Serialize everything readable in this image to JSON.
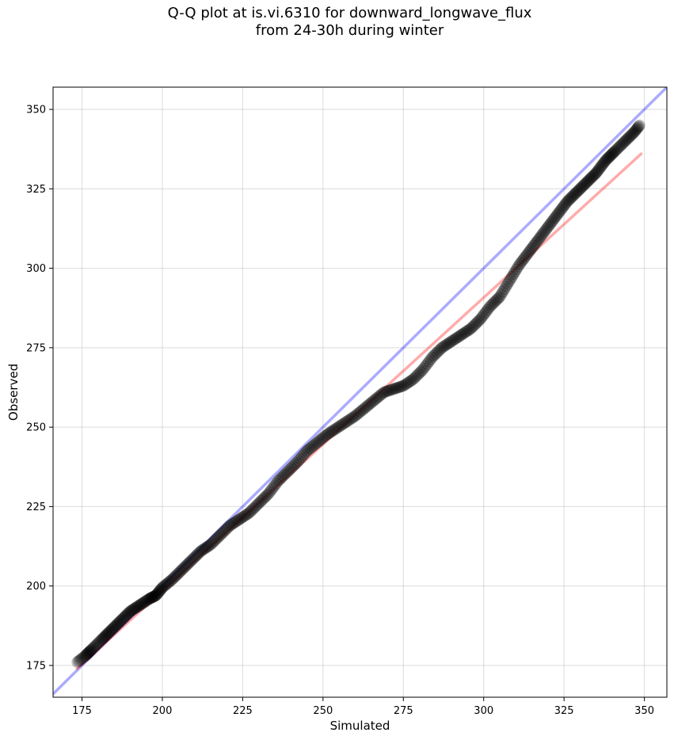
{
  "chart_data": {
    "type": "scatter",
    "title": "Q-Q plot at is.vi.6310 for downward_longwave_flux",
    "subtitle": "from 24-30h during winter",
    "xlabel": "Simulated",
    "ylabel": "Observed",
    "xlim": [
      166,
      357
    ],
    "ylim": [
      165,
      357
    ],
    "xticks": [
      175,
      200,
      225,
      250,
      275,
      300,
      325,
      350
    ],
    "yticks": [
      175,
      200,
      225,
      250,
      275,
      300,
      325,
      350
    ],
    "grid": true,
    "quantile_curve": {
      "x": [
        173.5,
        176,
        178,
        181,
        184,
        187,
        190,
        193,
        196,
        198,
        200,
        203,
        206,
        209,
        212,
        215,
        218,
        221,
        224,
        227,
        230,
        233,
        236,
        239,
        242,
        245,
        248,
        251,
        254,
        257,
        260,
        263,
        266,
        269,
        272,
        275,
        278,
        281,
        284,
        287,
        290,
        293,
        296,
        299,
        302,
        305,
        308,
        311,
        314,
        317,
        320,
        323,
        326,
        329,
        332,
        335,
        338,
        341,
        344,
        347,
        348.5
      ],
      "y": [
        176,
        178,
        180,
        183,
        186,
        189,
        192,
        194,
        196,
        197,
        199.5,
        202,
        205,
        208,
        211,
        213,
        216,
        219,
        221,
        223,
        226,
        229,
        233,
        236,
        239,
        242.5,
        245,
        247.5,
        249.5,
        251.5,
        253.5,
        256,
        258.5,
        261,
        262,
        263,
        265,
        268,
        272,
        275,
        277,
        279,
        281,
        284,
        288,
        291,
        296,
        301,
        305,
        309,
        313,
        317,
        321,
        324,
        327,
        330,
        334,
        337,
        340,
        343,
        345
      ]
    },
    "identity_line": {
      "name": "",
      "color": "#0000ff",
      "x": [
        166,
        357
      ],
      "y": [
        166,
        357
      ]
    },
    "fit_line": {
      "name": "",
      "color": "#ff0000",
      "x": [
        173.5,
        349
      ],
      "y": [
        174,
        336
      ]
    },
    "marker_color": "#000000"
  }
}
